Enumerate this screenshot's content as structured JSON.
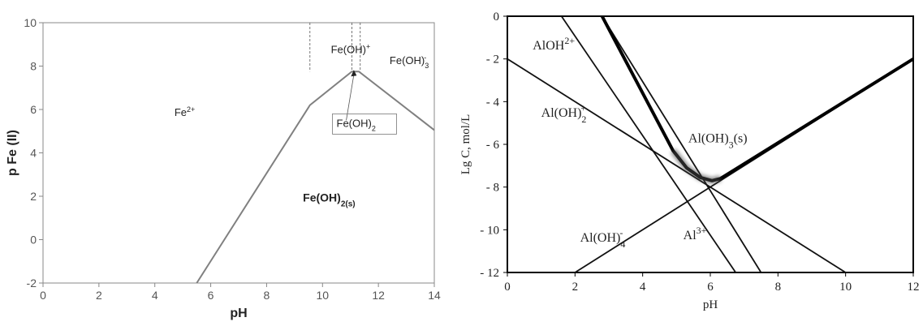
{
  "chart_data": [
    {
      "type": "line",
      "xlabel": "pH",
      "ylabel": "p Fe (II)",
      "xlim": [
        0,
        14
      ],
      "ylim": [
        -2,
        10
      ],
      "xticks": [
        "0",
        "2",
        "4",
        "6",
        "8",
        "10",
        "12",
        "14"
      ],
      "yticks": [
        "-2",
        "0",
        "2",
        "4",
        "6",
        "8",
        "10"
      ],
      "grid": false,
      "boundary": {
        "x": [
          5.5,
          9.55,
          11.05,
          11.3,
          14.0
        ],
        "y": [
          -2.0,
          6.2,
          7.75,
          7.75,
          5.05
        ]
      },
      "dividers": [
        9.55,
        11.05,
        11.35
      ],
      "regions": [
        {
          "main": "Fe",
          "sup": "2+",
          "sub": "",
          "x": 4.7,
          "y": 5.7
        },
        {
          "main": "Fe(OH)",
          "sup": "+",
          "sub": "",
          "x": 10.3,
          "y": 8.6
        },
        {
          "main": "Fe(OH)",
          "sup": "-",
          "sub": "3",
          "x": 12.4,
          "y": 8.1
        },
        {
          "main": "Fe(OH)",
          "sup": "",
          "sub": "2",
          "x": 10.5,
          "y": 5.2
        },
        {
          "main": "Fe(OH)",
          "sup": "",
          "sub": "2(s)",
          "x": 9.3,
          "y": 1.75
        }
      ]
    },
    {
      "type": "line",
      "xlabel": "pH",
      "ylabel": "Lg C, mol/L",
      "xlim": [
        0,
        12
      ],
      "ylim": [
        -12,
        0
      ],
      "xticks": [
        "0",
        "2",
        "4",
        "6",
        "8",
        "10",
        "12"
      ],
      "yticks": [
        "0",
        "- 2",
        "- 4",
        "- 6",
        "- 8",
        "- 10",
        "- 12"
      ],
      "grid": false,
      "series": [
        {
          "x": [
            1.6,
            6.75
          ],
          "y": [
            0,
            -12
          ]
        },
        {
          "x": [
            2.8,
            7.5
          ],
          "y": [
            0,
            -12
          ]
        },
        {
          "x": [
            0,
            10
          ],
          "y": [
            -2,
            -12
          ]
        },
        {
          "x": [
            2,
            12
          ],
          "y": [
            -12,
            -2
          ]
        }
      ],
      "solubility_curve": {
        "x": [
          2.8,
          4.9,
          5.3,
          5.7,
          6.05,
          6.3,
          12
        ],
        "y": [
          0,
          -6.3,
          -7.1,
          -7.55,
          -7.7,
          -7.6,
          -2
        ]
      },
      "labels": [
        {
          "main": "AlOH",
          "sup": "2+",
          "sub": "",
          "x": 0.75,
          "y": -1.55
        },
        {
          "main": "Al(OH)",
          "sup": "+",
          "sub": "2",
          "x": 1.0,
          "y": -4.7
        },
        {
          "main": "Al(OH)",
          "sup": "",
          "sub": "3",
          "tail": "(s)",
          "x": 5.35,
          "y": -5.9
        },
        {
          "main": "Al(OH)",
          "sup": "-",
          "sub": "4",
          "x": 2.15,
          "y": -10.55
        },
        {
          "main": "Al",
          "sup": "3+",
          "sub": "",
          "x": 5.2,
          "y": -10.45
        }
      ]
    }
  ]
}
